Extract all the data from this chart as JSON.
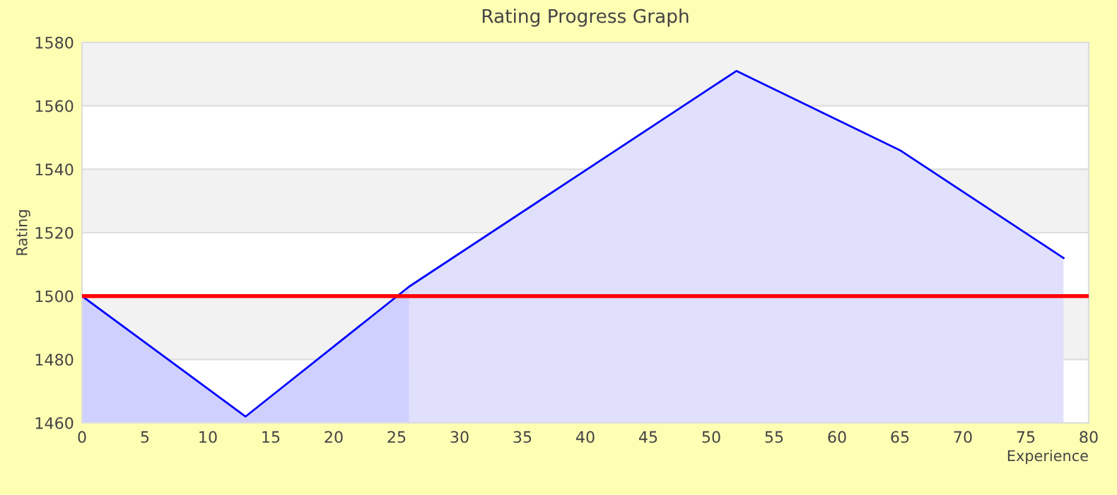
{
  "chart_data": {
    "type": "area",
    "title": "Rating Progress Graph",
    "xlabel": "Experience",
    "ylabel": "Rating",
    "series": [
      {
        "color": "#d0d0ff",
        "x": [
          0,
          13,
          26
        ],
        "values": [
          1500,
          1462,
          1503
        ]
      },
      {
        "color": "#e0e0fc",
        "x": [
          26,
          52,
          65,
          78
        ],
        "values": [
          1503,
          1571,
          1546,
          1512
        ]
      },
      {
        "type": "line",
        "color": "#0000ff",
        "x": [
          0,
          13,
          26,
          52,
          65,
          78
        ],
        "values": [
          1500,
          1462,
          1503,
          1571,
          1546,
          1512
        ]
      }
    ],
    "xlim": [
      0,
      80
    ],
    "xticks": [
      0,
      5,
      10,
      15,
      20,
      25,
      30,
      35,
      40,
      45,
      50,
      55,
      60,
      65,
      70,
      75,
      80
    ],
    "ylim": [
      1460,
      1580
    ],
    "yticks": [
      1460,
      1480,
      1500,
      1520,
      1540,
      1560,
      1580
    ],
    "ref_lines": [
      {
        "axis": "y",
        "value": 1500,
        "color": "#ff0000"
      }
    ],
    "bands": [
      {
        "axis": "y",
        "from": 1480,
        "to": 1500,
        "color": "#f2f2f2"
      },
      {
        "axis": "y",
        "from": 1520,
        "to": 1540,
        "color": "#f2f2f2"
      },
      {
        "axis": "y",
        "from": 1560,
        "to": 1580,
        "color": "#f2f2f2"
      }
    ],
    "grid": "y"
  }
}
